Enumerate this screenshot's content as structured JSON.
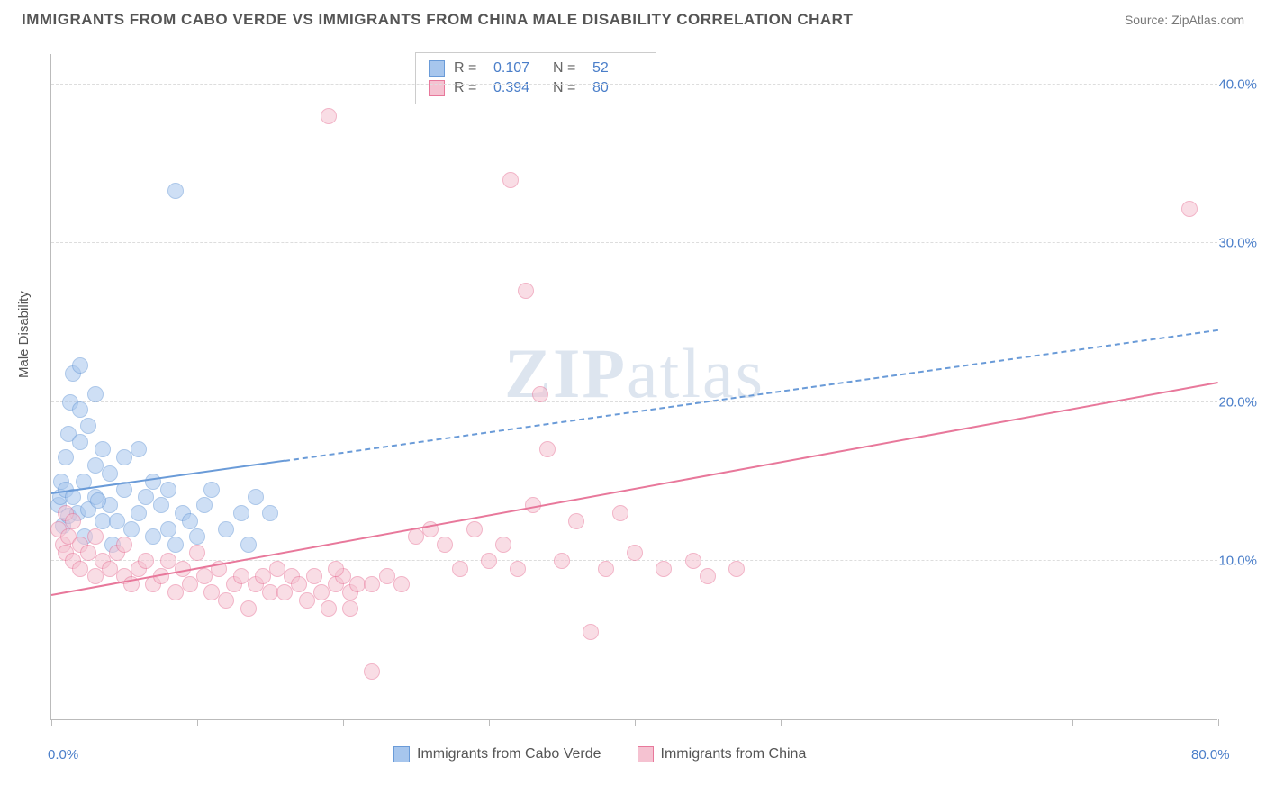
{
  "header": {
    "title": "IMMIGRANTS FROM CABO VERDE VS IMMIGRANTS FROM CHINA MALE DISABILITY CORRELATION CHART",
    "source": "Source: ZipAtlas.com"
  },
  "chart": {
    "type": "scatter",
    "ylabel": "Male Disability",
    "xlim": [
      0,
      80
    ],
    "ylim": [
      0,
      42
    ],
    "ytick_values": [
      10,
      20,
      30,
      40
    ],
    "ytick_labels": [
      "10.0%",
      "20.0%",
      "30.0%",
      "40.0%"
    ],
    "xtick_values": [
      0,
      10,
      20,
      30,
      40,
      50,
      60,
      70,
      80
    ],
    "xtick_labels_shown": {
      "0": "0.0%",
      "80": "80.0%"
    },
    "background_color": "#ffffff",
    "grid_color": "#dddddd",
    "axis_color": "#bbbbbb",
    "marker_radius": 9,
    "marker_opacity": 0.55,
    "series": [
      {
        "name": "Immigrants from Cabo Verde",
        "color_fill": "#a7c6ed",
        "color_stroke": "#6a9bd8",
        "R": "0.107",
        "N": "52",
        "regression": {
          "x1": 0,
          "y1": 14.2,
          "x2": 80,
          "y2": 24.5,
          "solid_until_x": 16
        },
        "points": [
          [
            0.5,
            13.5
          ],
          [
            0.6,
            14.0
          ],
          [
            0.7,
            15.0
          ],
          [
            0.8,
            12.2
          ],
          [
            1.0,
            14.5
          ],
          [
            1.0,
            16.5
          ],
          [
            1.2,
            18.0
          ],
          [
            1.2,
            12.8
          ],
          [
            1.3,
            20.0
          ],
          [
            1.5,
            21.8
          ],
          [
            1.5,
            14.0
          ],
          [
            1.8,
            13.0
          ],
          [
            2.0,
            22.3
          ],
          [
            2.0,
            19.5
          ],
          [
            2.0,
            17.5
          ],
          [
            2.2,
            15.0
          ],
          [
            2.3,
            11.5
          ],
          [
            2.5,
            13.2
          ],
          [
            2.5,
            18.5
          ],
          [
            3.0,
            20.5
          ],
          [
            3.0,
            16.0
          ],
          [
            3.0,
            14.0
          ],
          [
            3.5,
            17.0
          ],
          [
            3.5,
            12.5
          ],
          [
            4.0,
            15.5
          ],
          [
            4.0,
            13.5
          ],
          [
            4.2,
            11.0
          ],
          [
            5.0,
            14.5
          ],
          [
            5.0,
            16.5
          ],
          [
            5.5,
            12.0
          ],
          [
            6.0,
            13.0
          ],
          [
            6.0,
            17.0
          ],
          [
            6.5,
            14.0
          ],
          [
            7.0,
            15.0
          ],
          [
            7.0,
            11.5
          ],
          [
            7.5,
            13.5
          ],
          [
            8.0,
            12.0
          ],
          [
            8.0,
            14.5
          ],
          [
            8.5,
            11.0
          ],
          [
            9.0,
            13.0
          ],
          [
            9.5,
            12.5
          ],
          [
            10.0,
            11.5
          ],
          [
            10.5,
            13.5
          ],
          [
            11.0,
            14.5
          ],
          [
            12.0,
            12.0
          ],
          [
            13.0,
            13.0
          ],
          [
            13.5,
            11.0
          ],
          [
            14.0,
            14.0
          ],
          [
            15.0,
            13.0
          ],
          [
            8.5,
            33.3
          ],
          [
            3.2,
            13.8
          ],
          [
            4.5,
            12.5
          ]
        ]
      },
      {
        "name": "Immigrants from China",
        "color_fill": "#f5c2d1",
        "color_stroke": "#e8789b",
        "R": "0.394",
        "N": "80",
        "regression": {
          "x1": 0,
          "y1": 7.8,
          "x2": 80,
          "y2": 21.2,
          "solid_until_x": 80
        },
        "points": [
          [
            0.5,
            12.0
          ],
          [
            0.8,
            11.0
          ],
          [
            1.0,
            10.5
          ],
          [
            1.0,
            13.0
          ],
          [
            1.2,
            11.5
          ],
          [
            1.5,
            10.0
          ],
          [
            1.5,
            12.5
          ],
          [
            2.0,
            11.0
          ],
          [
            2.0,
            9.5
          ],
          [
            2.5,
            10.5
          ],
          [
            3.0,
            11.5
          ],
          [
            3.0,
            9.0
          ],
          [
            3.5,
            10.0
          ],
          [
            4.0,
            9.5
          ],
          [
            4.5,
            10.5
          ],
          [
            5.0,
            9.0
          ],
          [
            5.0,
            11.0
          ],
          [
            5.5,
            8.5
          ],
          [
            6.0,
            9.5
          ],
          [
            6.5,
            10.0
          ],
          [
            7.0,
            8.5
          ],
          [
            7.5,
            9.0
          ],
          [
            8.0,
            10.0
          ],
          [
            8.5,
            8.0
          ],
          [
            9.0,
            9.5
          ],
          [
            9.5,
            8.5
          ],
          [
            10.0,
            10.5
          ],
          [
            10.5,
            9.0
          ],
          [
            11.0,
            8.0
          ],
          [
            11.5,
            9.5
          ],
          [
            12.0,
            7.5
          ],
          [
            12.5,
            8.5
          ],
          [
            13.0,
            9.0
          ],
          [
            13.5,
            7.0
          ],
          [
            14.0,
            8.5
          ],
          [
            14.5,
            9.0
          ],
          [
            15.0,
            8.0
          ],
          [
            15.5,
            9.5
          ],
          [
            16.0,
            8.0
          ],
          [
            16.5,
            9.0
          ],
          [
            17.0,
            8.5
          ],
          [
            17.5,
            7.5
          ],
          [
            18.0,
            9.0
          ],
          [
            18.5,
            8.0
          ],
          [
            19.0,
            7.0
          ],
          [
            19.5,
            8.5
          ],
          [
            20.0,
            9.0
          ],
          [
            20.5,
            8.0
          ],
          [
            21.0,
            8.5
          ],
          [
            19.0,
            38.0
          ],
          [
            22.0,
            8.5
          ],
          [
            23.0,
            9.0
          ],
          [
            24.0,
            8.5
          ],
          [
            25.0,
            11.5
          ],
          [
            26.0,
            12.0
          ],
          [
            27.0,
            11.0
          ],
          [
            28.0,
            9.5
          ],
          [
            29.0,
            12.0
          ],
          [
            30.0,
            10.0
          ],
          [
            31.0,
            11.0
          ],
          [
            31.5,
            34.0
          ],
          [
            32.0,
            9.5
          ],
          [
            33.0,
            13.5
          ],
          [
            32.5,
            27.0
          ],
          [
            33.5,
            20.5
          ],
          [
            34.0,
            17.0
          ],
          [
            35.0,
            10.0
          ],
          [
            36.0,
            12.5
          ],
          [
            38.0,
            9.5
          ],
          [
            39.0,
            13.0
          ],
          [
            40.0,
            10.5
          ],
          [
            22.0,
            3.0
          ],
          [
            42.0,
            9.5
          ],
          [
            44.0,
            10.0
          ],
          [
            45.0,
            9.0
          ],
          [
            47.0,
            9.5
          ],
          [
            37.0,
            5.5
          ],
          [
            78.0,
            32.2
          ],
          [
            19.5,
            9.5
          ],
          [
            20.5,
            7.0
          ]
        ]
      }
    ],
    "legend_bottom": [
      {
        "label": "Immigrants from Cabo Verde",
        "fill": "#a7c6ed",
        "stroke": "#6a9bd8"
      },
      {
        "label": "Immigrants from China",
        "fill": "#f5c2d1",
        "stroke": "#e8789b"
      }
    ],
    "watermark": {
      "zip": "ZIP",
      "atlas": "atlas"
    }
  }
}
